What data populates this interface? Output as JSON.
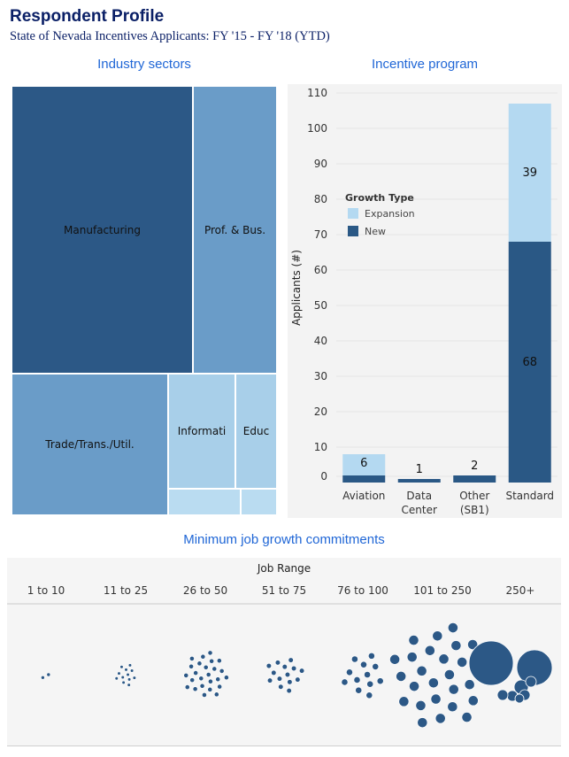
{
  "header": {
    "title": "Respondent Profile",
    "subtitle": "State of Nevada Incentives Applicants:  FY '15 - FY '18 (YTD)"
  },
  "colors": {
    "new": "#2a5885",
    "expansion": "#b4d9f1",
    "tm_dark": "#2c5886",
    "tm_mid": "#6a9cc8",
    "tm_light": "#a8cfe9",
    "tm_lighter": "#badcf1",
    "bubble": "#2c5886",
    "section_title": "#1f66d6"
  },
  "treemap": {
    "title": "Industry sectors",
    "labels": {
      "manufacturing": "Manufacturing",
      "prof_bus": "Prof. & Bus.",
      "trade": "Trade/Trans./Util.",
      "information": "Informati",
      "education": "Educ"
    }
  },
  "chart_data": [
    {
      "type": "bar",
      "stacked": true,
      "title": "Incentive program",
      "ylabel": "Applicants (#)",
      "xlabel": "",
      "ylim": [
        0,
        110
      ],
      "yticks": [
        0,
        10,
        20,
        30,
        40,
        50,
        60,
        70,
        80,
        90,
        100,
        110
      ],
      "categories": [
        "Aviation",
        "Data Center",
        "Other (SB1)",
        "Standard"
      ],
      "category_lines": [
        [
          "Aviation"
        ],
        [
          "Data",
          "Center"
        ],
        [
          "Other",
          "(SB1)"
        ],
        [
          "Standard"
        ]
      ],
      "series": [
        {
          "name": "New",
          "values": [
            2,
            1,
            2,
            68
          ]
        },
        {
          "name": "Expansion",
          "values": [
            6,
            0,
            0,
            39
          ]
        }
      ],
      "data_labels": [
        {
          "category": "Aviation",
          "series": "Expansion",
          "text": "6"
        },
        {
          "category": "Data Center",
          "series": "New",
          "text": "1",
          "position": "above"
        },
        {
          "category": "Other (SB1)",
          "series": "New",
          "text": "2",
          "position": "above"
        },
        {
          "category": "Standard",
          "series": "Expansion",
          "text": "39"
        },
        {
          "category": "Standard",
          "series": "New",
          "text": "68"
        }
      ],
      "legend": {
        "title": "Growth Type",
        "placement": "top-left",
        "items": [
          "Expansion",
          "New"
        ]
      },
      "grid": true
    },
    {
      "type": "bubble",
      "title": "Minimum job growth commitments",
      "column_header": "Job Range",
      "categories": [
        "1 to 10",
        "11 to 25",
        "26 to 50",
        "51 to 75",
        "76 to 100",
        "101 to 250",
        "250+"
      ],
      "bubble_counts": [
        2,
        12,
        25,
        14,
        12,
        28,
        8
      ]
    }
  ]
}
